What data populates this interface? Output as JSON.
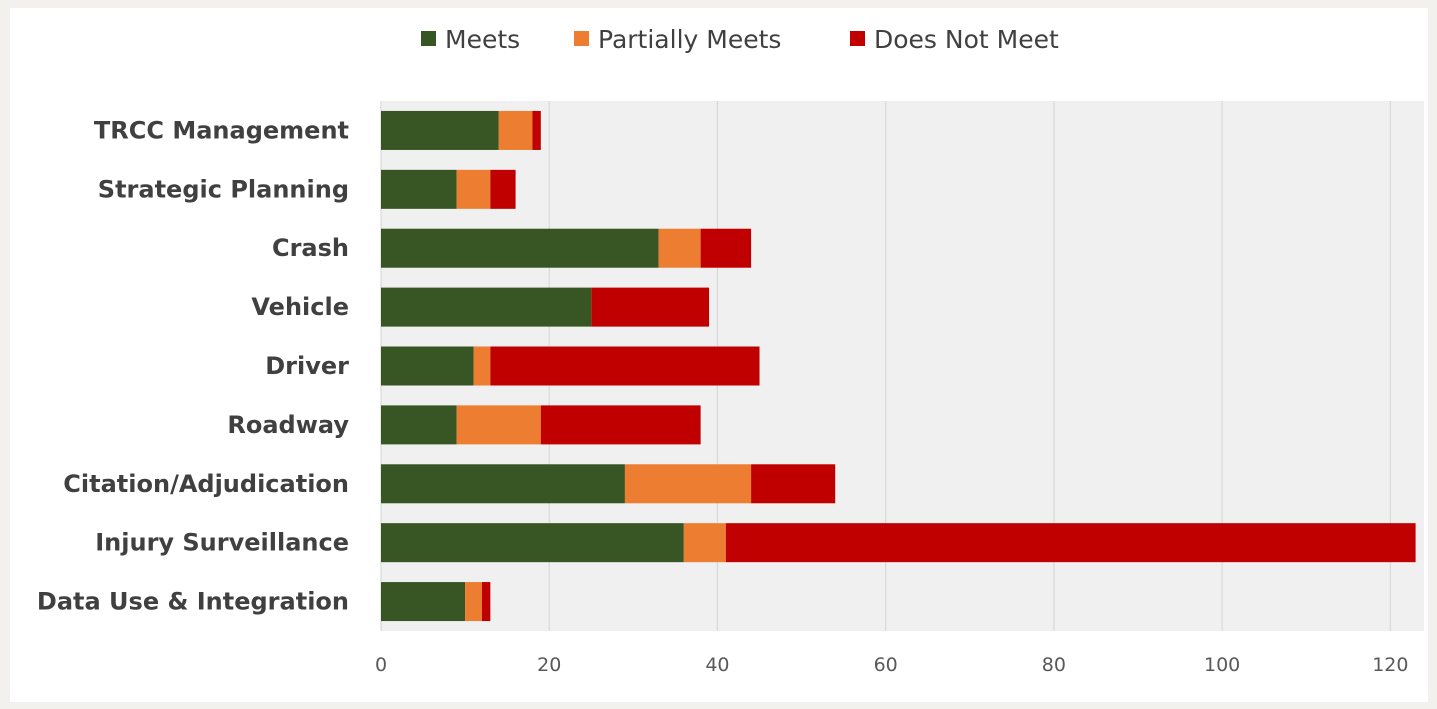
{
  "chart_data": {
    "type": "bar",
    "orientation": "horizontal",
    "stacked": true,
    "title": "",
    "xlabel": "",
    "ylabel": "",
    "categories": [
      "TRCC Management",
      "Strategic Planning",
      "Crash",
      "Vehicle",
      "Driver",
      "Roadway",
      "Citation/Adjudication",
      "Injury Surveillance",
      "Data Use & Integration"
    ],
    "series": [
      {
        "name": "Meets",
        "color": "#375623",
        "values": [
          14,
          9,
          33,
          25,
          11,
          9,
          29,
          36,
          10
        ]
      },
      {
        "name": "Partially Meets",
        "color": "#ed7d31",
        "values": [
          4,
          4,
          5,
          0,
          2,
          10,
          15,
          5,
          2
        ]
      },
      {
        "name": "Does Not Meet",
        "color": "#c00000",
        "values": [
          1,
          3,
          6,
          14,
          32,
          19,
          10,
          82,
          1
        ]
      }
    ],
    "xlim": [
      0,
      124
    ],
    "xticks": [
      0,
      20,
      40,
      60,
      80,
      100,
      120
    ],
    "grid": "vertical",
    "legend_position": "top",
    "plot_background": "#f0f0f0",
    "gridline_color": "#d9d9d9"
  }
}
